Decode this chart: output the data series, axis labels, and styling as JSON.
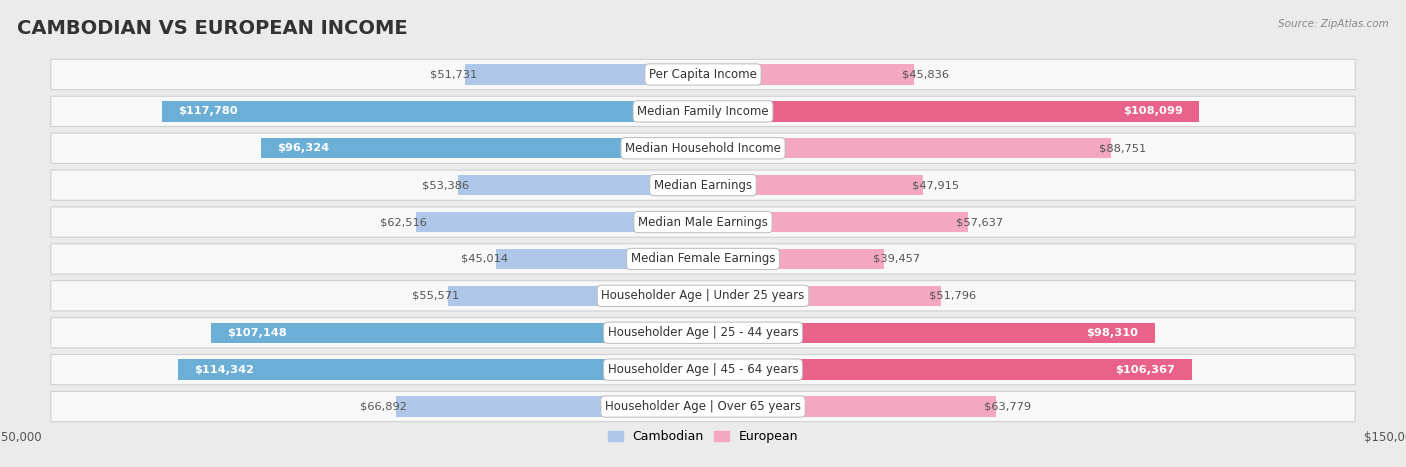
{
  "title": "CAMBODIAN VS EUROPEAN INCOME",
  "source": "Source: ZipAtlas.com",
  "categories": [
    "Per Capita Income",
    "Median Family Income",
    "Median Household Income",
    "Median Earnings",
    "Median Male Earnings",
    "Median Female Earnings",
    "Householder Age | Under 25 years",
    "Householder Age | 25 - 44 years",
    "Householder Age | 45 - 64 years",
    "Householder Age | Over 65 years"
  ],
  "cambodian_values": [
    51731,
    117780,
    96324,
    53386,
    62516,
    45014,
    55571,
    107148,
    114342,
    66892
  ],
  "european_values": [
    45836,
    108099,
    88751,
    47915,
    57637,
    39457,
    51796,
    98310,
    106367,
    63779
  ],
  "max_value": 150000,
  "cambodian_color_light": "#aec6e8",
  "cambodian_color_dark": "#6baed6",
  "european_color_light": "#f4a7c0",
  "european_color_dark": "#e8628a",
  "bg_color": "#ebebeb",
  "row_bg_color": "#f8f8f8",
  "title_fontsize": 14,
  "label_fontsize": 8.5,
  "value_fontsize": 8.2,
  "threshold_inside": 95000
}
